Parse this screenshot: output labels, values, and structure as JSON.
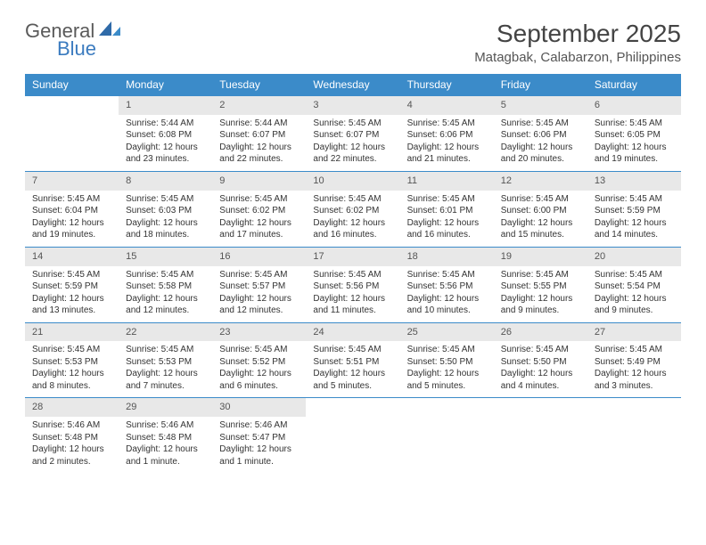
{
  "logo": {
    "word1": "General",
    "word2": "Blue"
  },
  "title": "September 2025",
  "location": "Matagbak, Calabarzon, Philippines",
  "colors": {
    "header_bg": "#3b8bc9",
    "header_text": "#ffffff",
    "daynum_bg": "#e8e8e8",
    "row_border": "#3b8bc9",
    "logo_gray": "#5a5a5a",
    "logo_blue": "#3b7bbf"
  },
  "weekdays": [
    "Sunday",
    "Monday",
    "Tuesday",
    "Wednesday",
    "Thursday",
    "Friday",
    "Saturday"
  ],
  "weeks": [
    [
      null,
      {
        "n": "1",
        "sr": "5:44 AM",
        "ss": "6:08 PM",
        "dl": "12 hours and 23 minutes."
      },
      {
        "n": "2",
        "sr": "5:44 AM",
        "ss": "6:07 PM",
        "dl": "12 hours and 22 minutes."
      },
      {
        "n": "3",
        "sr": "5:45 AM",
        "ss": "6:07 PM",
        "dl": "12 hours and 22 minutes."
      },
      {
        "n": "4",
        "sr": "5:45 AM",
        "ss": "6:06 PM",
        "dl": "12 hours and 21 minutes."
      },
      {
        "n": "5",
        "sr": "5:45 AM",
        "ss": "6:06 PM",
        "dl": "12 hours and 20 minutes."
      },
      {
        "n": "6",
        "sr": "5:45 AM",
        "ss": "6:05 PM",
        "dl": "12 hours and 19 minutes."
      }
    ],
    [
      {
        "n": "7",
        "sr": "5:45 AM",
        "ss": "6:04 PM",
        "dl": "12 hours and 19 minutes."
      },
      {
        "n": "8",
        "sr": "5:45 AM",
        "ss": "6:03 PM",
        "dl": "12 hours and 18 minutes."
      },
      {
        "n": "9",
        "sr": "5:45 AM",
        "ss": "6:02 PM",
        "dl": "12 hours and 17 minutes."
      },
      {
        "n": "10",
        "sr": "5:45 AM",
        "ss": "6:02 PM",
        "dl": "12 hours and 16 minutes."
      },
      {
        "n": "11",
        "sr": "5:45 AM",
        "ss": "6:01 PM",
        "dl": "12 hours and 16 minutes."
      },
      {
        "n": "12",
        "sr": "5:45 AM",
        "ss": "6:00 PM",
        "dl": "12 hours and 15 minutes."
      },
      {
        "n": "13",
        "sr": "5:45 AM",
        "ss": "5:59 PM",
        "dl": "12 hours and 14 minutes."
      }
    ],
    [
      {
        "n": "14",
        "sr": "5:45 AM",
        "ss": "5:59 PM",
        "dl": "12 hours and 13 minutes."
      },
      {
        "n": "15",
        "sr": "5:45 AM",
        "ss": "5:58 PM",
        "dl": "12 hours and 12 minutes."
      },
      {
        "n": "16",
        "sr": "5:45 AM",
        "ss": "5:57 PM",
        "dl": "12 hours and 12 minutes."
      },
      {
        "n": "17",
        "sr": "5:45 AM",
        "ss": "5:56 PM",
        "dl": "12 hours and 11 minutes."
      },
      {
        "n": "18",
        "sr": "5:45 AM",
        "ss": "5:56 PM",
        "dl": "12 hours and 10 minutes."
      },
      {
        "n": "19",
        "sr": "5:45 AM",
        "ss": "5:55 PM",
        "dl": "12 hours and 9 minutes."
      },
      {
        "n": "20",
        "sr": "5:45 AM",
        "ss": "5:54 PM",
        "dl": "12 hours and 9 minutes."
      }
    ],
    [
      {
        "n": "21",
        "sr": "5:45 AM",
        "ss": "5:53 PM",
        "dl": "12 hours and 8 minutes."
      },
      {
        "n": "22",
        "sr": "5:45 AM",
        "ss": "5:53 PM",
        "dl": "12 hours and 7 minutes."
      },
      {
        "n": "23",
        "sr": "5:45 AM",
        "ss": "5:52 PM",
        "dl": "12 hours and 6 minutes."
      },
      {
        "n": "24",
        "sr": "5:45 AM",
        "ss": "5:51 PM",
        "dl": "12 hours and 5 minutes."
      },
      {
        "n": "25",
        "sr": "5:45 AM",
        "ss": "5:50 PM",
        "dl": "12 hours and 5 minutes."
      },
      {
        "n": "26",
        "sr": "5:45 AM",
        "ss": "5:50 PM",
        "dl": "12 hours and 4 minutes."
      },
      {
        "n": "27",
        "sr": "5:45 AM",
        "ss": "5:49 PM",
        "dl": "12 hours and 3 minutes."
      }
    ],
    [
      {
        "n": "28",
        "sr": "5:46 AM",
        "ss": "5:48 PM",
        "dl": "12 hours and 2 minutes."
      },
      {
        "n": "29",
        "sr": "5:46 AM",
        "ss": "5:48 PM",
        "dl": "12 hours and 1 minute."
      },
      {
        "n": "30",
        "sr": "5:46 AM",
        "ss": "5:47 PM",
        "dl": "12 hours and 1 minute."
      },
      null,
      null,
      null,
      null
    ]
  ],
  "labels": {
    "sunrise": "Sunrise:",
    "sunset": "Sunset:",
    "daylight": "Daylight:"
  }
}
